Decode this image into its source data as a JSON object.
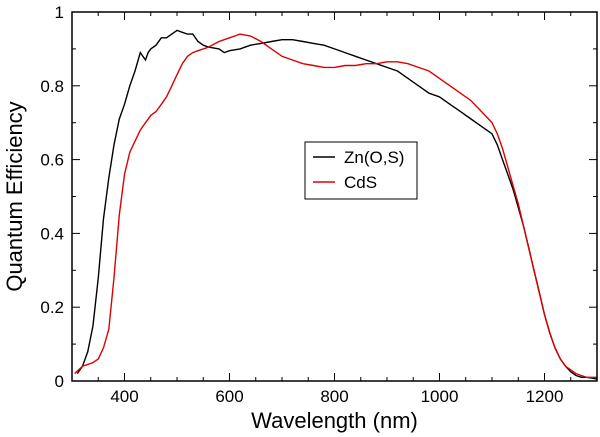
{
  "chart_data": {
    "type": "line",
    "title": "",
    "xlabel": "Wavelength (nm)",
    "ylabel": "Quantum Efficiency",
    "xlim": [
      300,
      1300
    ],
    "ylim": [
      0,
      1
    ],
    "xticks": [
      400,
      600,
      800,
      1000,
      1200
    ],
    "yticks": [
      0,
      0.2,
      0.4,
      0.6,
      0.8,
      1
    ],
    "ytick_labels": [
      "0",
      "0.2",
      "0.4",
      "0.6",
      "0.8",
      "1"
    ],
    "grid": false,
    "legend_position": "center-right",
    "series": [
      {
        "name": "Zn(O,S)",
        "color": "#000000",
        "points": [
          [
            310,
            0.02
          ],
          [
            320,
            0.04
          ],
          [
            330,
            0.08
          ],
          [
            340,
            0.15
          ],
          [
            350,
            0.28
          ],
          [
            360,
            0.44
          ],
          [
            370,
            0.55
          ],
          [
            380,
            0.64
          ],
          [
            390,
            0.71
          ],
          [
            400,
            0.75
          ],
          [
            410,
            0.8
          ],
          [
            420,
            0.84
          ],
          [
            430,
            0.89
          ],
          [
            435,
            0.88
          ],
          [
            440,
            0.87
          ],
          [
            445,
            0.89
          ],
          [
            450,
            0.9
          ],
          [
            460,
            0.91
          ],
          [
            470,
            0.93
          ],
          [
            480,
            0.93
          ],
          [
            490,
            0.94
          ],
          [
            500,
            0.95
          ],
          [
            510,
            0.945
          ],
          [
            520,
            0.94
          ],
          [
            530,
            0.94
          ],
          [
            540,
            0.92
          ],
          [
            550,
            0.91
          ],
          [
            560,
            0.905
          ],
          [
            580,
            0.9
          ],
          [
            590,
            0.89
          ],
          [
            600,
            0.895
          ],
          [
            620,
            0.9
          ],
          [
            640,
            0.91
          ],
          [
            660,
            0.915
          ],
          [
            680,
            0.92
          ],
          [
            700,
            0.925
          ],
          [
            720,
            0.925
          ],
          [
            740,
            0.92
          ],
          [
            760,
            0.915
          ],
          [
            780,
            0.91
          ],
          [
            800,
            0.9
          ],
          [
            820,
            0.89
          ],
          [
            840,
            0.88
          ],
          [
            860,
            0.87
          ],
          [
            880,
            0.86
          ],
          [
            900,
            0.85
          ],
          [
            920,
            0.84
          ],
          [
            940,
            0.82
          ],
          [
            960,
            0.8
          ],
          [
            980,
            0.78
          ],
          [
            1000,
            0.77
          ],
          [
            1020,
            0.75
          ],
          [
            1040,
            0.73
          ],
          [
            1060,
            0.71
          ],
          [
            1080,
            0.69
          ],
          [
            1100,
            0.67
          ],
          [
            1110,
            0.64
          ],
          [
            1120,
            0.6
          ],
          [
            1130,
            0.56
          ],
          [
            1140,
            0.52
          ],
          [
            1150,
            0.47
          ],
          [
            1160,
            0.42
          ],
          [
            1170,
            0.36
          ],
          [
            1180,
            0.3
          ],
          [
            1190,
            0.24
          ],
          [
            1200,
            0.18
          ],
          [
            1210,
            0.13
          ],
          [
            1220,
            0.09
          ],
          [
            1230,
            0.06
          ],
          [
            1240,
            0.04
          ],
          [
            1250,
            0.025
          ],
          [
            1260,
            0.015
          ],
          [
            1270,
            0.01
          ],
          [
            1280,
            0.01
          ],
          [
            1290,
            0.008
          ],
          [
            1300,
            0.005
          ]
        ]
      },
      {
        "name": "CdS",
        "color": "#dd0000",
        "points": [
          [
            305,
            0.02
          ],
          [
            320,
            0.04
          ],
          [
            340,
            0.05
          ],
          [
            350,
            0.06
          ],
          [
            360,
            0.09
          ],
          [
            370,
            0.14
          ],
          [
            380,
            0.28
          ],
          [
            390,
            0.45
          ],
          [
            400,
            0.56
          ],
          [
            410,
            0.62
          ],
          [
            420,
            0.65
          ],
          [
            430,
            0.68
          ],
          [
            440,
            0.7
          ],
          [
            450,
            0.72
          ],
          [
            460,
            0.73
          ],
          [
            470,
            0.75
          ],
          [
            480,
            0.77
          ],
          [
            490,
            0.8
          ],
          [
            500,
            0.83
          ],
          [
            510,
            0.86
          ],
          [
            520,
            0.88
          ],
          [
            530,
            0.89
          ],
          [
            540,
            0.895
          ],
          [
            550,
            0.9
          ],
          [
            560,
            0.905
          ],
          [
            580,
            0.92
          ],
          [
            600,
            0.93
          ],
          [
            610,
            0.935
          ],
          [
            620,
            0.94
          ],
          [
            640,
            0.935
          ],
          [
            660,
            0.92
          ],
          [
            680,
            0.9
          ],
          [
            700,
            0.88
          ],
          [
            720,
            0.87
          ],
          [
            740,
            0.86
          ],
          [
            760,
            0.855
          ],
          [
            780,
            0.85
          ],
          [
            800,
            0.85
          ],
          [
            820,
            0.855
          ],
          [
            840,
            0.855
          ],
          [
            860,
            0.86
          ],
          [
            880,
            0.86
          ],
          [
            900,
            0.865
          ],
          [
            920,
            0.865
          ],
          [
            940,
            0.86
          ],
          [
            960,
            0.85
          ],
          [
            980,
            0.84
          ],
          [
            1000,
            0.82
          ],
          [
            1020,
            0.8
          ],
          [
            1040,
            0.78
          ],
          [
            1060,
            0.76
          ],
          [
            1080,
            0.73
          ],
          [
            1100,
            0.7
          ],
          [
            1110,
            0.67
          ],
          [
            1120,
            0.63
          ],
          [
            1130,
            0.58
          ],
          [
            1140,
            0.53
          ],
          [
            1150,
            0.48
          ],
          [
            1160,
            0.42
          ],
          [
            1170,
            0.36
          ],
          [
            1180,
            0.3
          ],
          [
            1190,
            0.24
          ],
          [
            1200,
            0.18
          ],
          [
            1210,
            0.13
          ],
          [
            1220,
            0.09
          ],
          [
            1230,
            0.06
          ],
          [
            1240,
            0.04
          ],
          [
            1250,
            0.03
          ],
          [
            1260,
            0.02
          ],
          [
            1270,
            0.015
          ],
          [
            1280,
            0.01
          ],
          [
            1290,
            0.01
          ],
          [
            1300,
            0.01
          ]
        ]
      }
    ]
  }
}
